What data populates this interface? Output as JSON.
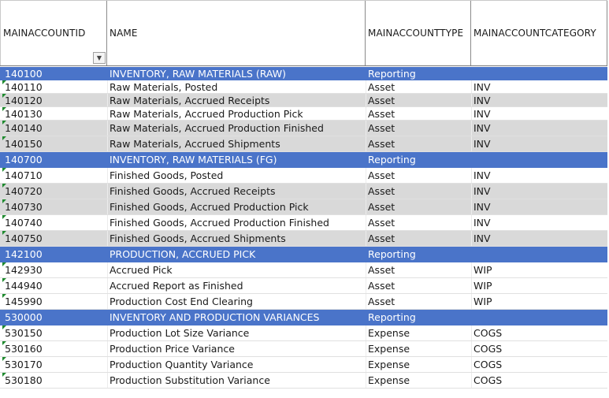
{
  "columns": {
    "c1": "MAINACCOUNTID",
    "c2": "NAME",
    "c3": "MAINACCOUNTTYPE",
    "c4": "MAINACCOUNTCATEGORY"
  },
  "filter_icon": "filter-dropdown-icon",
  "colors": {
    "group_row": "#4a74c9",
    "band_row": "#d9d9d9",
    "error_triangle": "#1e8a2e"
  },
  "rows": [
    {
      "id": "140100",
      "name": "INVENTORY, RAW MATERIALS (RAW)",
      "type": "Reporting",
      "cat": "",
      "style": "blue"
    },
    {
      "id": "140110",
      "name": "Raw Materials, Posted",
      "type": "Asset",
      "cat": "INV",
      "style": "white"
    },
    {
      "id": "140120",
      "name": "Raw Materials, Accrued Receipts",
      "type": "Asset",
      "cat": "INV",
      "style": "grey"
    },
    {
      "id": "140130",
      "name": "Raw Materials, Accrued Production Pick",
      "type": "Asset",
      "cat": "INV",
      "style": "white"
    },
    {
      "id": "140140",
      "name": "Raw Materials, Accrued Production Finished",
      "type": "Asset",
      "cat": "INV",
      "style": "grey"
    },
    {
      "id": "140150",
      "name": "Raw Materials, Accrued Shipments",
      "type": "Asset",
      "cat": "INV",
      "style": "grey"
    },
    {
      "id": "140700",
      "name": "INVENTORY, RAW MATERIALS (FG)",
      "type": "Reporting",
      "cat": "",
      "style": "blue"
    },
    {
      "id": "140710",
      "name": "Finished Goods, Posted",
      "type": "Asset",
      "cat": "INV",
      "style": "white"
    },
    {
      "id": "140720",
      "name": "Finished Goods, Accrued Receipts",
      "type": "Asset",
      "cat": "INV",
      "style": "grey"
    },
    {
      "id": "140730",
      "name": "Finished Goods, Accrued Production Pick",
      "type": "Asset",
      "cat": "INV",
      "style": "grey"
    },
    {
      "id": "140740",
      "name": "Finished Goods, Accrued Production Finished",
      "type": "Asset",
      "cat": "INV",
      "style": "white"
    },
    {
      "id": "140750",
      "name": "Finished Goods, Accrued Shipments",
      "type": "Asset",
      "cat": "INV",
      "style": "grey"
    },
    {
      "id": "142100",
      "name": "PRODUCTION, ACCRUED PICK",
      "type": "Reporting",
      "cat": "",
      "style": "blue"
    },
    {
      "id": "142930",
      "name": "Accrued Pick",
      "type": "Asset",
      "cat": "WIP",
      "style": "white"
    },
    {
      "id": "144940",
      "name": "Accrued Report as Finished",
      "type": "Asset",
      "cat": "WIP",
      "style": "white"
    },
    {
      "id": "145990",
      "name": "Production Cost End Clearing",
      "type": "Asset",
      "cat": "WIP",
      "style": "white"
    },
    {
      "id": "530000",
      "name": "INVENTORY AND PRODUCTION VARIANCES",
      "type": "Reporting",
      "cat": "",
      "style": "blue"
    },
    {
      "id": "530150",
      "name": "Production Lot Size Variance",
      "type": "Expense",
      "cat": "COGS",
      "style": "white"
    },
    {
      "id": "530160",
      "name": "Production Price Variance",
      "type": "Expense",
      "cat": "COGS",
      "style": "white"
    },
    {
      "id": "530170",
      "name": "Production Quantity Variance",
      "type": "Expense",
      "cat": "COGS",
      "style": "white"
    },
    {
      "id": "530180",
      "name": "Production Substitution Variance",
      "type": "Expense",
      "cat": "COGS",
      "style": "white"
    }
  ]
}
